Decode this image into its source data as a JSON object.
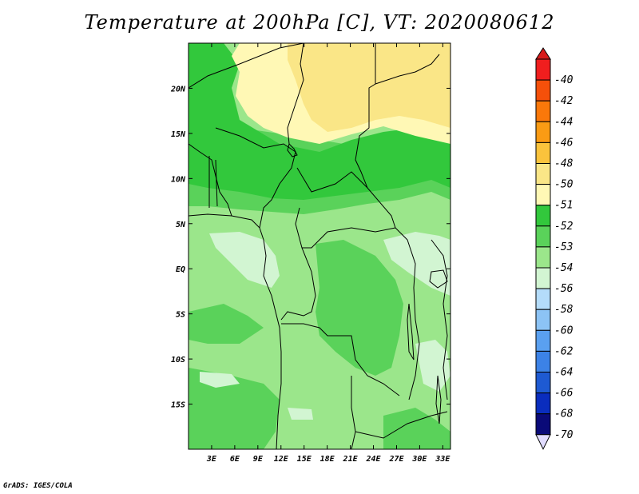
{
  "title": "Temperature at 200hPa [C], VT: 2020080612",
  "credit": "GrADS: IGES/COLA",
  "map": {
    "lon_ticks": [
      "3E",
      "6E",
      "9E",
      "12E",
      "15E",
      "18E",
      "21E",
      "24E",
      "27E",
      "30E",
      "33E"
    ],
    "lat_ticks": [
      "20N",
      "15N",
      "10N",
      "5N",
      "EQ",
      "5S",
      "10S",
      "15S"
    ],
    "lon_range": [
      0,
      34
    ],
    "lat_range": [
      -20,
      25
    ]
  },
  "legend": {
    "labels": [
      "-40",
      "-42",
      "-44",
      "-46",
      "-48",
      "-50",
      "-51",
      "-52",
      "-53",
      "-54",
      "-56",
      "-58",
      "-60",
      "-62",
      "-64",
      "-66",
      "-68",
      "-70"
    ],
    "colors": [
      "#f01e1e",
      "#f5500a",
      "#fa780a",
      "#fa9b14",
      "#fac33c",
      "#fae687",
      "#fff8b5",
      "#32c83c",
      "#5ad25a",
      "#9be68b",
      "#d2f5d2",
      "#b4dcfa",
      "#8cc3f5",
      "#5aa0f0",
      "#3c82e6",
      "#1e5ad2",
      "#0a2dbe",
      "#0a0a78"
    ],
    "top_color": "#d71a1a",
    "bottom_color": "#e1dcff"
  }
}
